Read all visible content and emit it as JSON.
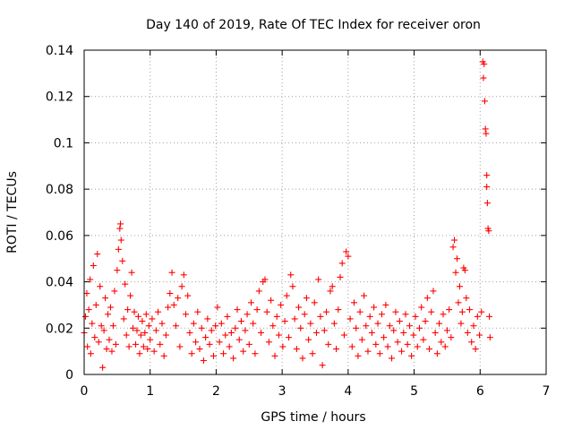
{
  "chart_data": {
    "type": "scatter",
    "title": "Day 140 of 2019, Rate Of TEC Index for receiver oron",
    "xlabel": "GPS time / hours",
    "ylabel": "ROTI / TECUs",
    "xlim": [
      0,
      7
    ],
    "ylim": [
      0,
      0.14
    ],
    "xticks": [
      0,
      1,
      2,
      3,
      4,
      5,
      6,
      7
    ],
    "yticks": [
      0,
      0.02,
      0.04,
      0.06,
      0.08,
      0.1,
      0.12,
      0.14
    ],
    "xtick_labels": [
      "0",
      "1",
      "2",
      "3",
      "4",
      "5",
      "6",
      "7"
    ],
    "ytick_labels": [
      "0",
      "0.02",
      "0.04",
      "0.06",
      "0.08",
      "0.1",
      "0.12",
      "0.14"
    ],
    "grid": true,
    "marker": "+",
    "color": "#ff0000",
    "series": [
      {
        "name": "ROTI",
        "points": [
          [
            0.0,
            0.018
          ],
          [
            0.02,
            0.025
          ],
          [
            0.04,
            0.035
          ],
          [
            0.05,
            0.012
          ],
          [
            0.07,
            0.028
          ],
          [
            0.09,
            0.041
          ],
          [
            0.1,
            0.009
          ],
          [
            0.12,
            0.022
          ],
          [
            0.14,
            0.047
          ],
          [
            0.16,
            0.016
          ],
          [
            0.18,
            0.03
          ],
          [
            0.2,
            0.052
          ],
          [
            0.22,
            0.014
          ],
          [
            0.24,
            0.038
          ],
          [
            0.26,
            0.021
          ],
          [
            0.28,
            0.003
          ],
          [
            0.3,
            0.019
          ],
          [
            0.32,
            0.033
          ],
          [
            0.34,
            0.011
          ],
          [
            0.36,
            0.026
          ],
          [
            0.38,
            0.015
          ],
          [
            0.4,
            0.029
          ],
          [
            0.42,
            0.01
          ],
          [
            0.44,
            0.021
          ],
          [
            0.46,
            0.036
          ],
          [
            0.48,
            0.013
          ],
          [
            0.5,
            0.045
          ],
          [
            0.52,
            0.054
          ],
          [
            0.54,
            0.063
          ],
          [
            0.55,
            0.065
          ],
          [
            0.56,
            0.058
          ],
          [
            0.58,
            0.049
          ],
          [
            0.6,
            0.024
          ],
          [
            0.62,
            0.039
          ],
          [
            0.64,
            0.017
          ],
          [
            0.66,
            0.028
          ],
          [
            0.68,
            0.012
          ],
          [
            0.7,
            0.034
          ],
          [
            0.72,
            0.044
          ],
          [
            0.74,
            0.02
          ],
          [
            0.76,
            0.027
          ],
          [
            0.78,
            0.013
          ],
          [
            0.8,
            0.019
          ],
          [
            0.82,
            0.025
          ],
          [
            0.84,
            0.009
          ],
          [
            0.86,
            0.017
          ],
          [
            0.88,
            0.023
          ],
          [
            0.9,
            0.012
          ],
          [
            0.92,
            0.018
          ],
          [
            0.94,
            0.026
          ],
          [
            0.96,
            0.011
          ],
          [
            0.98,
            0.021
          ],
          [
            1.0,
            0.015
          ],
          [
            1.03,
            0.024
          ],
          [
            1.06,
            0.01
          ],
          [
            1.09,
            0.019
          ],
          [
            1.12,
            0.027
          ],
          [
            1.15,
            0.013
          ],
          [
            1.18,
            0.022
          ],
          [
            1.21,
            0.008
          ],
          [
            1.24,
            0.017
          ],
          [
            1.27,
            0.029
          ],
          [
            1.3,
            0.035
          ],
          [
            1.33,
            0.044
          ],
          [
            1.36,
            0.03
          ],
          [
            1.39,
            0.021
          ],
          [
            1.42,
            0.033
          ],
          [
            1.45,
            0.012
          ],
          [
            1.48,
            0.038
          ],
          [
            1.51,
            0.043
          ],
          [
            1.54,
            0.026
          ],
          [
            1.57,
            0.034
          ],
          [
            1.6,
            0.018
          ],
          [
            1.63,
            0.009
          ],
          [
            1.66,
            0.022
          ],
          [
            1.69,
            0.014
          ],
          [
            1.72,
            0.027
          ],
          [
            1.75,
            0.011
          ],
          [
            1.78,
            0.02
          ],
          [
            1.81,
            0.006
          ],
          [
            1.84,
            0.016
          ],
          [
            1.87,
            0.024
          ],
          [
            1.9,
            0.013
          ],
          [
            1.93,
            0.019
          ],
          [
            1.96,
            0.008
          ],
          [
            1.99,
            0.021
          ],
          [
            2.02,
            0.029
          ],
          [
            2.05,
            0.014
          ],
          [
            2.08,
            0.022
          ],
          [
            2.11,
            0.009
          ],
          [
            2.14,
            0.017
          ],
          [
            2.17,
            0.025
          ],
          [
            2.2,
            0.012
          ],
          [
            2.23,
            0.018
          ],
          [
            2.26,
            0.007
          ],
          [
            2.29,
            0.02
          ],
          [
            2.32,
            0.028
          ],
          [
            2.35,
            0.015
          ],
          [
            2.38,
            0.023
          ],
          [
            2.41,
            0.01
          ],
          [
            2.44,
            0.019
          ],
          [
            2.47,
            0.026
          ],
          [
            2.5,
            0.013
          ],
          [
            2.53,
            0.031
          ],
          [
            2.56,
            0.022
          ],
          [
            2.59,
            0.009
          ],
          [
            2.62,
            0.028
          ],
          [
            2.65,
            0.036
          ],
          [
            2.68,
            0.018
          ],
          [
            2.71,
            0.04
          ],
          [
            2.74,
            0.041
          ],
          [
            2.77,
            0.027
          ],
          [
            2.8,
            0.014
          ],
          [
            2.83,
            0.032
          ],
          [
            2.86,
            0.021
          ],
          [
            2.89,
            0.008
          ],
          [
            2.92,
            0.025
          ],
          [
            2.95,
            0.017
          ],
          [
            2.98,
            0.03
          ],
          [
            3.01,
            0.012
          ],
          [
            3.04,
            0.023
          ],
          [
            3.07,
            0.034
          ],
          [
            3.1,
            0.016
          ],
          [
            3.13,
            0.043
          ],
          [
            3.16,
            0.038
          ],
          [
            3.19,
            0.024
          ],
          [
            3.22,
            0.011
          ],
          [
            3.25,
            0.029
          ],
          [
            3.28,
            0.02
          ],
          [
            3.31,
            0.007
          ],
          [
            3.34,
            0.026
          ],
          [
            3.37,
            0.033
          ],
          [
            3.4,
            0.015
          ],
          [
            3.43,
            0.022
          ],
          [
            3.46,
            0.009
          ],
          [
            3.49,
            0.031
          ],
          [
            3.52,
            0.018
          ],
          [
            3.55,
            0.041
          ],
          [
            3.58,
            0.025
          ],
          [
            3.61,
            0.004
          ],
          [
            3.64,
            0.019
          ],
          [
            3.67,
            0.027
          ],
          [
            3.7,
            0.013
          ],
          [
            3.73,
            0.036
          ],
          [
            3.76,
            0.038
          ],
          [
            3.79,
            0.022
          ],
          [
            3.82,
            0.011
          ],
          [
            3.85,
            0.028
          ],
          [
            3.88,
            0.042
          ],
          [
            3.91,
            0.048
          ],
          [
            3.94,
            0.017
          ],
          [
            3.97,
            0.053
          ],
          [
            4.0,
            0.051
          ],
          [
            4.03,
            0.024
          ],
          [
            4.06,
            0.012
          ],
          [
            4.09,
            0.031
          ],
          [
            4.12,
            0.02
          ],
          [
            4.15,
            0.008
          ],
          [
            4.18,
            0.027
          ],
          [
            4.21,
            0.015
          ],
          [
            4.24,
            0.034
          ],
          [
            4.27,
            0.021
          ],
          [
            4.3,
            0.01
          ],
          [
            4.33,
            0.025
          ],
          [
            4.36,
            0.018
          ],
          [
            4.39,
            0.029
          ],
          [
            4.42,
            0.013
          ],
          [
            4.45,
            0.022
          ],
          [
            4.48,
            0.009
          ],
          [
            4.51,
            0.026
          ],
          [
            4.54,
            0.016
          ],
          [
            4.57,
            0.03
          ],
          [
            4.6,
            0.012
          ],
          [
            4.63,
            0.021
          ],
          [
            4.66,
            0.007
          ],
          [
            4.69,
            0.019
          ],
          [
            4.72,
            0.027
          ],
          [
            4.75,
            0.014
          ],
          [
            4.78,
            0.023
          ],
          [
            4.81,
            0.01
          ],
          [
            4.84,
            0.018
          ],
          [
            4.87,
            0.026
          ],
          [
            4.9,
            0.013
          ],
          [
            4.93,
            0.021
          ],
          [
            4.96,
            0.008
          ],
          [
            4.99,
            0.017
          ],
          [
            5.02,
            0.025
          ],
          [
            5.05,
            0.012
          ],
          [
            5.08,
            0.02
          ],
          [
            5.11,
            0.029
          ],
          [
            5.14,
            0.015
          ],
          [
            5.17,
            0.023
          ],
          [
            5.2,
            0.033
          ],
          [
            5.23,
            0.011
          ],
          [
            5.26,
            0.027
          ],
          [
            5.29,
            0.036
          ],
          [
            5.32,
            0.018
          ],
          [
            5.35,
            0.009
          ],
          [
            5.38,
            0.022
          ],
          [
            5.41,
            0.014
          ],
          [
            5.44,
            0.026
          ],
          [
            5.47,
            0.012
          ],
          [
            5.5,
            0.019
          ],
          [
            5.53,
            0.028
          ],
          [
            5.56,
            0.016
          ],
          [
            5.59,
            0.055
          ],
          [
            5.61,
            0.058
          ],
          [
            5.63,
            0.044
          ],
          [
            5.65,
            0.05
          ],
          [
            5.67,
            0.031
          ],
          [
            5.69,
            0.038
          ],
          [
            5.71,
            0.022
          ],
          [
            5.73,
            0.027
          ],
          [
            5.75,
            0.046
          ],
          [
            5.77,
            0.045
          ],
          [
            5.79,
            0.033
          ],
          [
            5.81,
            0.018
          ],
          [
            5.84,
            0.028
          ],
          [
            5.87,
            0.014
          ],
          [
            5.9,
            0.021
          ],
          [
            5.93,
            0.011
          ],
          [
            5.96,
            0.025
          ],
          [
            5.99,
            0.017
          ],
          [
            6.02,
            0.027
          ],
          [
            6.04,
            0.135
          ],
          [
            6.05,
            0.128
          ],
          [
            6.06,
            0.134
          ],
          [
            6.07,
            0.118
          ],
          [
            6.08,
            0.106
          ],
          [
            6.09,
            0.104
          ],
          [
            6.1,
            0.086
          ],
          [
            6.1,
            0.081
          ],
          [
            6.11,
            0.074
          ],
          [
            6.12,
            0.063
          ],
          [
            6.13,
            0.062
          ],
          [
            6.14,
            0.025
          ],
          [
            6.15,
            0.016
          ]
        ]
      }
    ]
  }
}
